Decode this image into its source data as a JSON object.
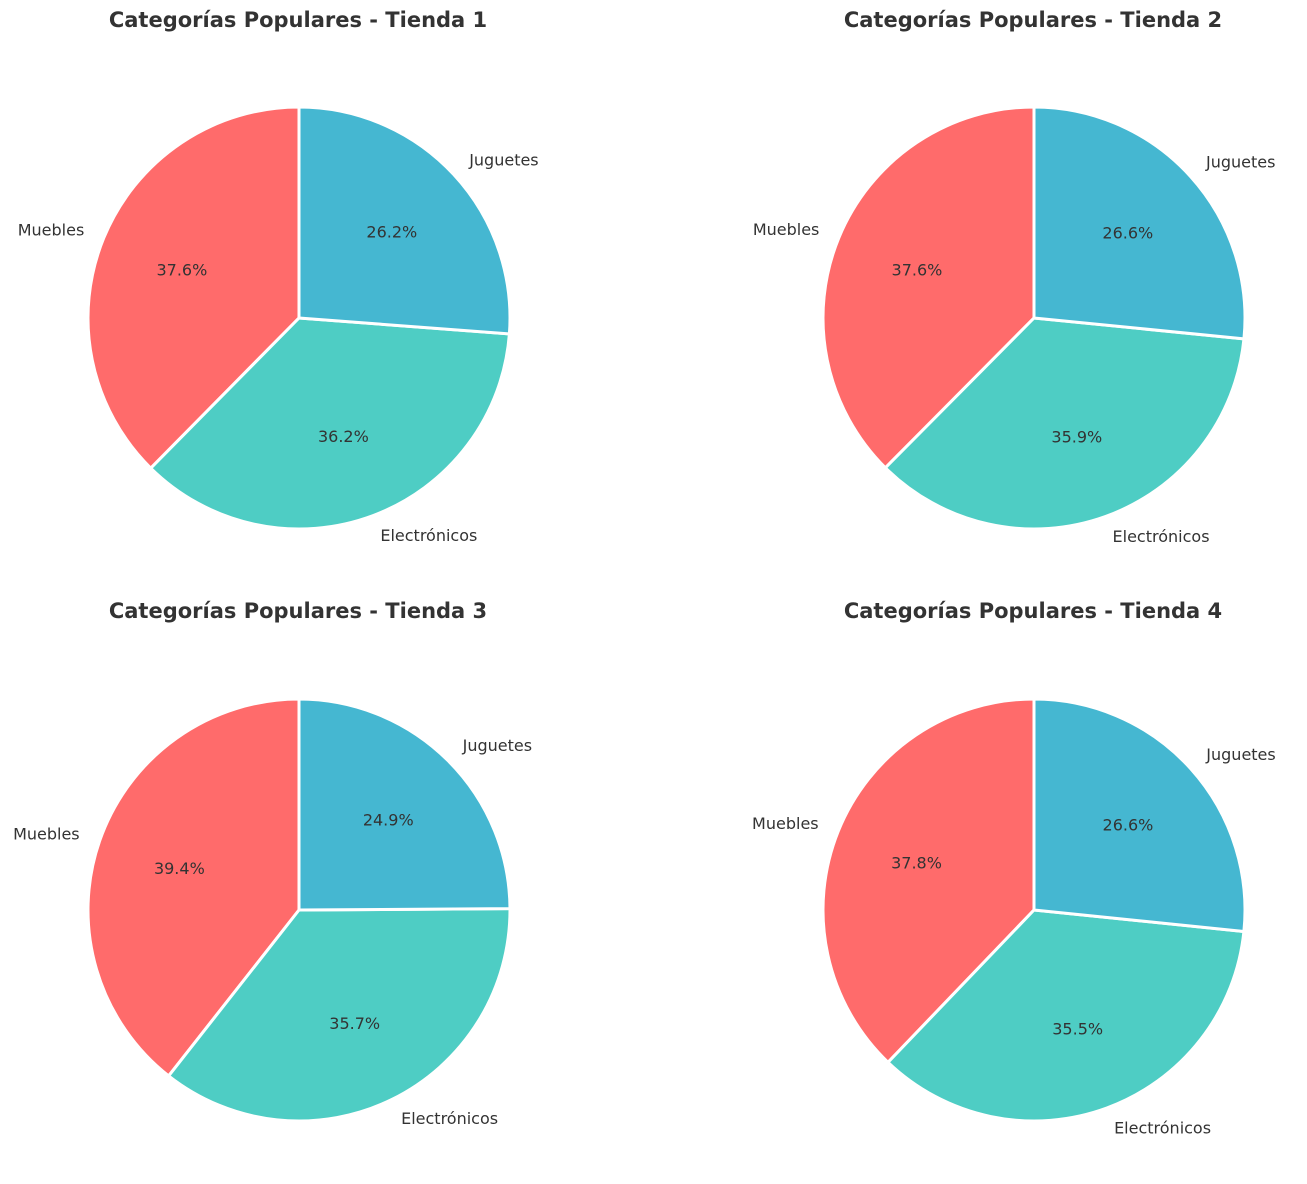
{
  "colors": {
    "Muebles": "#FF6B6B",
    "Electrónicos": "#4ECDC4",
    "Juguetes": "#45B7D1",
    "edge": "#ffffff"
  },
  "chart_data": [
    {
      "type": "pie",
      "title": "Categorías Populares - Tienda 1",
      "start_angle_deg": 90,
      "direction": "counterclockwise",
      "slices": [
        {
          "label": "Muebles",
          "value": 37.6,
          "value_label": "37.6%"
        },
        {
          "label": "Electrónicos",
          "value": 36.2,
          "value_label": "36.2%"
        },
        {
          "label": "Juguetes",
          "value": 26.2,
          "value_label": "26.2%"
        }
      ]
    },
    {
      "type": "pie",
      "title": "Categorías Populares - Tienda 2",
      "start_angle_deg": 90,
      "direction": "counterclockwise",
      "slices": [
        {
          "label": "Muebles",
          "value": 37.6,
          "value_label": "37.6%"
        },
        {
          "label": "Electrónicos",
          "value": 35.9,
          "value_label": "35.9%"
        },
        {
          "label": "Juguetes",
          "value": 26.6,
          "value_label": "26.6%"
        }
      ]
    },
    {
      "type": "pie",
      "title": "Categorías Populares - Tienda 3",
      "start_angle_deg": 90,
      "direction": "counterclockwise",
      "slices": [
        {
          "label": "Muebles",
          "value": 39.4,
          "value_label": "39.4%"
        },
        {
          "label": "Electrónicos",
          "value": 35.7,
          "value_label": "35.7%"
        },
        {
          "label": "Juguetes",
          "value": 24.9,
          "value_label": "24.9%"
        }
      ]
    },
    {
      "type": "pie",
      "title": "Categorías Populares - Tienda 4",
      "start_angle_deg": 90,
      "direction": "counterclockwise",
      "slices": [
        {
          "label": "Muebles",
          "value": 37.8,
          "value_label": "37.8%"
        },
        {
          "label": "Electrónicos",
          "value": 35.5,
          "value_label": "35.5%"
        },
        {
          "label": "Juguetes",
          "value": 26.6,
          "value_label": "26.6%"
        }
      ]
    }
  ]
}
